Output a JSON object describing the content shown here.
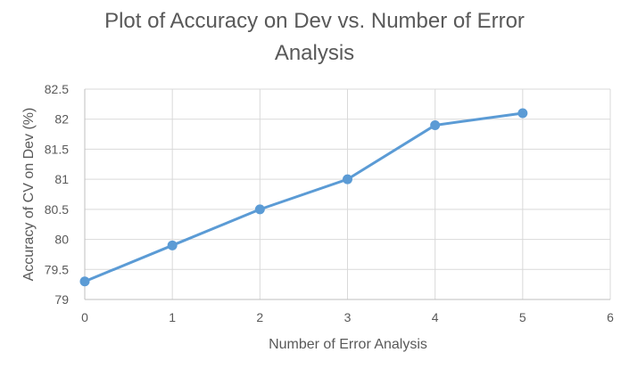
{
  "chart_data": {
    "type": "line",
    "title_lines": [
      "Plot of Accuracy on Dev vs. Number of Error",
      "Analysis"
    ],
    "xlabel": "Number of Error Analysis",
    "ylabel": "Accuracy of CV on Dev (%)",
    "xlim": [
      0,
      6
    ],
    "ylim": [
      79,
      82.5
    ],
    "x_ticks": [
      "0",
      "1",
      "2",
      "3",
      "4",
      "5",
      "6"
    ],
    "y_ticks": [
      "79",
      "79.5",
      "80",
      "80.5",
      "81",
      "81.5",
      "82",
      "82.5"
    ],
    "grid": true,
    "legend": "none",
    "series": [
      {
        "color": "#5B9BD5",
        "x": [
          0,
          1,
          2,
          3,
          4,
          5
        ],
        "y": [
          79.3,
          79.9,
          80.5,
          81.0,
          81.9,
          82.1
        ]
      }
    ]
  }
}
